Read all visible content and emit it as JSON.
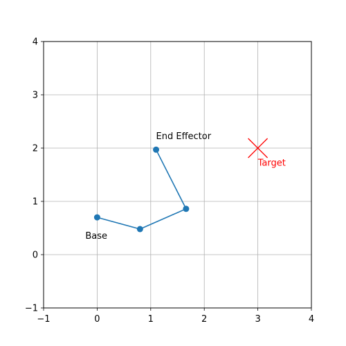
{
  "chart_data": {
    "type": "scatter",
    "title": "",
    "xlabel": "",
    "ylabel": "",
    "xlim": [
      -1,
      4
    ],
    "ylim": [
      -1,
      4
    ],
    "xticks": [
      -1,
      0,
      1,
      2,
      3,
      4
    ],
    "yticks": [
      -1,
      0,
      1,
      2,
      3,
      4
    ],
    "grid": true,
    "series": [
      {
        "style": "line-with-markers",
        "color": "#1f77b4",
        "points": [
          {
            "x": 0.0,
            "y": 0.7
          },
          {
            "x": 0.8,
            "y": 0.48
          },
          {
            "x": 1.66,
            "y": 0.86
          },
          {
            "x": 1.1,
            "y": 1.97
          }
        ]
      },
      {
        "style": "x-marker",
        "color": "#ff0000",
        "points": [
          {
            "x": 3.0,
            "y": 2.0
          }
        ]
      }
    ],
    "annotations": [
      {
        "text": "Base",
        "x": -0.22,
        "y": 0.3,
        "color": "#000000"
      },
      {
        "text": "End Effector",
        "x": 1.1,
        "y": 2.17,
        "color": "#000000"
      },
      {
        "text": "Target",
        "x": 3.0,
        "y": 1.67,
        "color": "#ff0000"
      }
    ]
  }
}
